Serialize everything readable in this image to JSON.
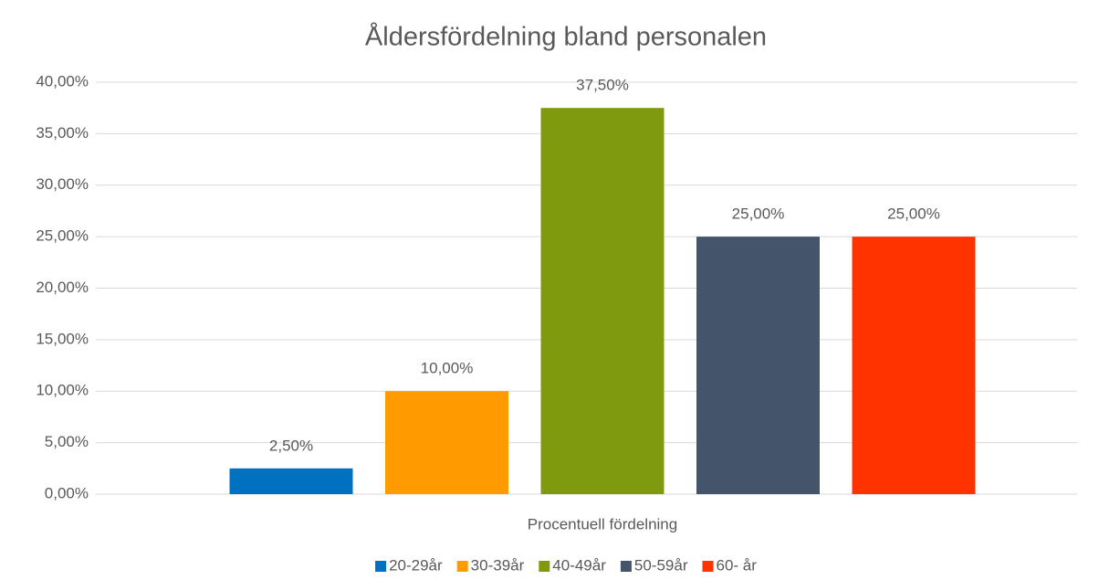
{
  "chart_data": {
    "type": "bar",
    "title": "Åldersfördelning bland personalen",
    "categories": [
      "Procentuell fördelning"
    ],
    "series": [
      {
        "name": "20-29år",
        "color": "#0070c0",
        "values": [
          2.5
        ],
        "value_labels": [
          "2,50%"
        ]
      },
      {
        "name": "30-39år",
        "color": "#ff9a00",
        "values": [
          10
        ],
        "value_labels": [
          "10,00%"
        ]
      },
      {
        "name": "40-49år",
        "color": "#7f9a0e",
        "values": [
          37.5
        ],
        "value_labels": [
          "37,50%"
        ]
      },
      {
        "name": "50-59år",
        "color": "#44546a",
        "values": [
          25
        ],
        "value_labels": [
          "25,00%"
        ]
      },
      {
        "name": "60- år",
        "color": "#ff3300",
        "values": [
          25
        ],
        "value_labels": [
          "25,00%"
        ]
      }
    ],
    "ylim": [
      0,
      40
    ],
    "yticks": [
      {
        "value": 0,
        "label": "0,00%"
      },
      {
        "value": 5,
        "label": "5,00%"
      },
      {
        "value": 10,
        "label": "10,00%"
      },
      {
        "value": 15,
        "label": "15,00%"
      },
      {
        "value": 20,
        "label": "20,00%"
      },
      {
        "value": 25,
        "label": "25,00%"
      },
      {
        "value": 30,
        "label": "30,00%"
      },
      {
        "value": 35,
        "label": "35,00%"
      },
      {
        "value": 40,
        "label": "40,00%"
      }
    ],
    "grid": true,
    "legend": "bottom"
  }
}
